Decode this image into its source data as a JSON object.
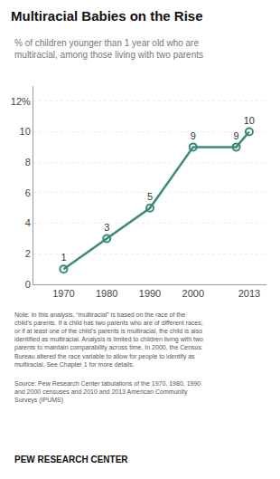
{
  "chart_data": {
    "type": "line",
    "title": "Multiracial Babies on the Rise",
    "subtitle": "% of children younger than 1 year old who are\nmultiracial, among those living with two parents",
    "x": [
      1970,
      1980,
      1990,
      2000,
      2010,
      2013
    ],
    "values": [
      1,
      3,
      5,
      9,
      9,
      10
    ],
    "color": "#3a8a7a",
    "marker": "circle-open",
    "data_labels": true,
    "xlim": [
      1963,
      2017
    ],
    "xticks": [
      1970,
      1980,
      1990,
      2000,
      2013
    ],
    "ylim": [
      0,
      13
    ],
    "yticks": [
      0,
      2,
      4,
      6,
      8,
      10,
      {
        "value": 12,
        "label": "12%"
      }
    ],
    "grid": true,
    "note": "Note: In this analysis, “multiracial” is based on the race of the\nchild’s parents. If a child has two parents who are of different races,\nor if at least one of the child’s parents is multiracial, the child is also\nidentified as multiracial. Analysis is limited to children living with two\nparents to maintain comparability across time. In 2000, the Census\nBureau altered the race variable to allow for people to identify as\nmultiracial. See Chapter 1 for more details.",
    "source": "Source: Pew Research Center tabulations of the 1970, 1980, 1990\nand 2000 censuses and 2010 and 2013 American Community\nSurveys (IPUMS)",
    "branding": "PEW RESEARCH CENTER"
  }
}
